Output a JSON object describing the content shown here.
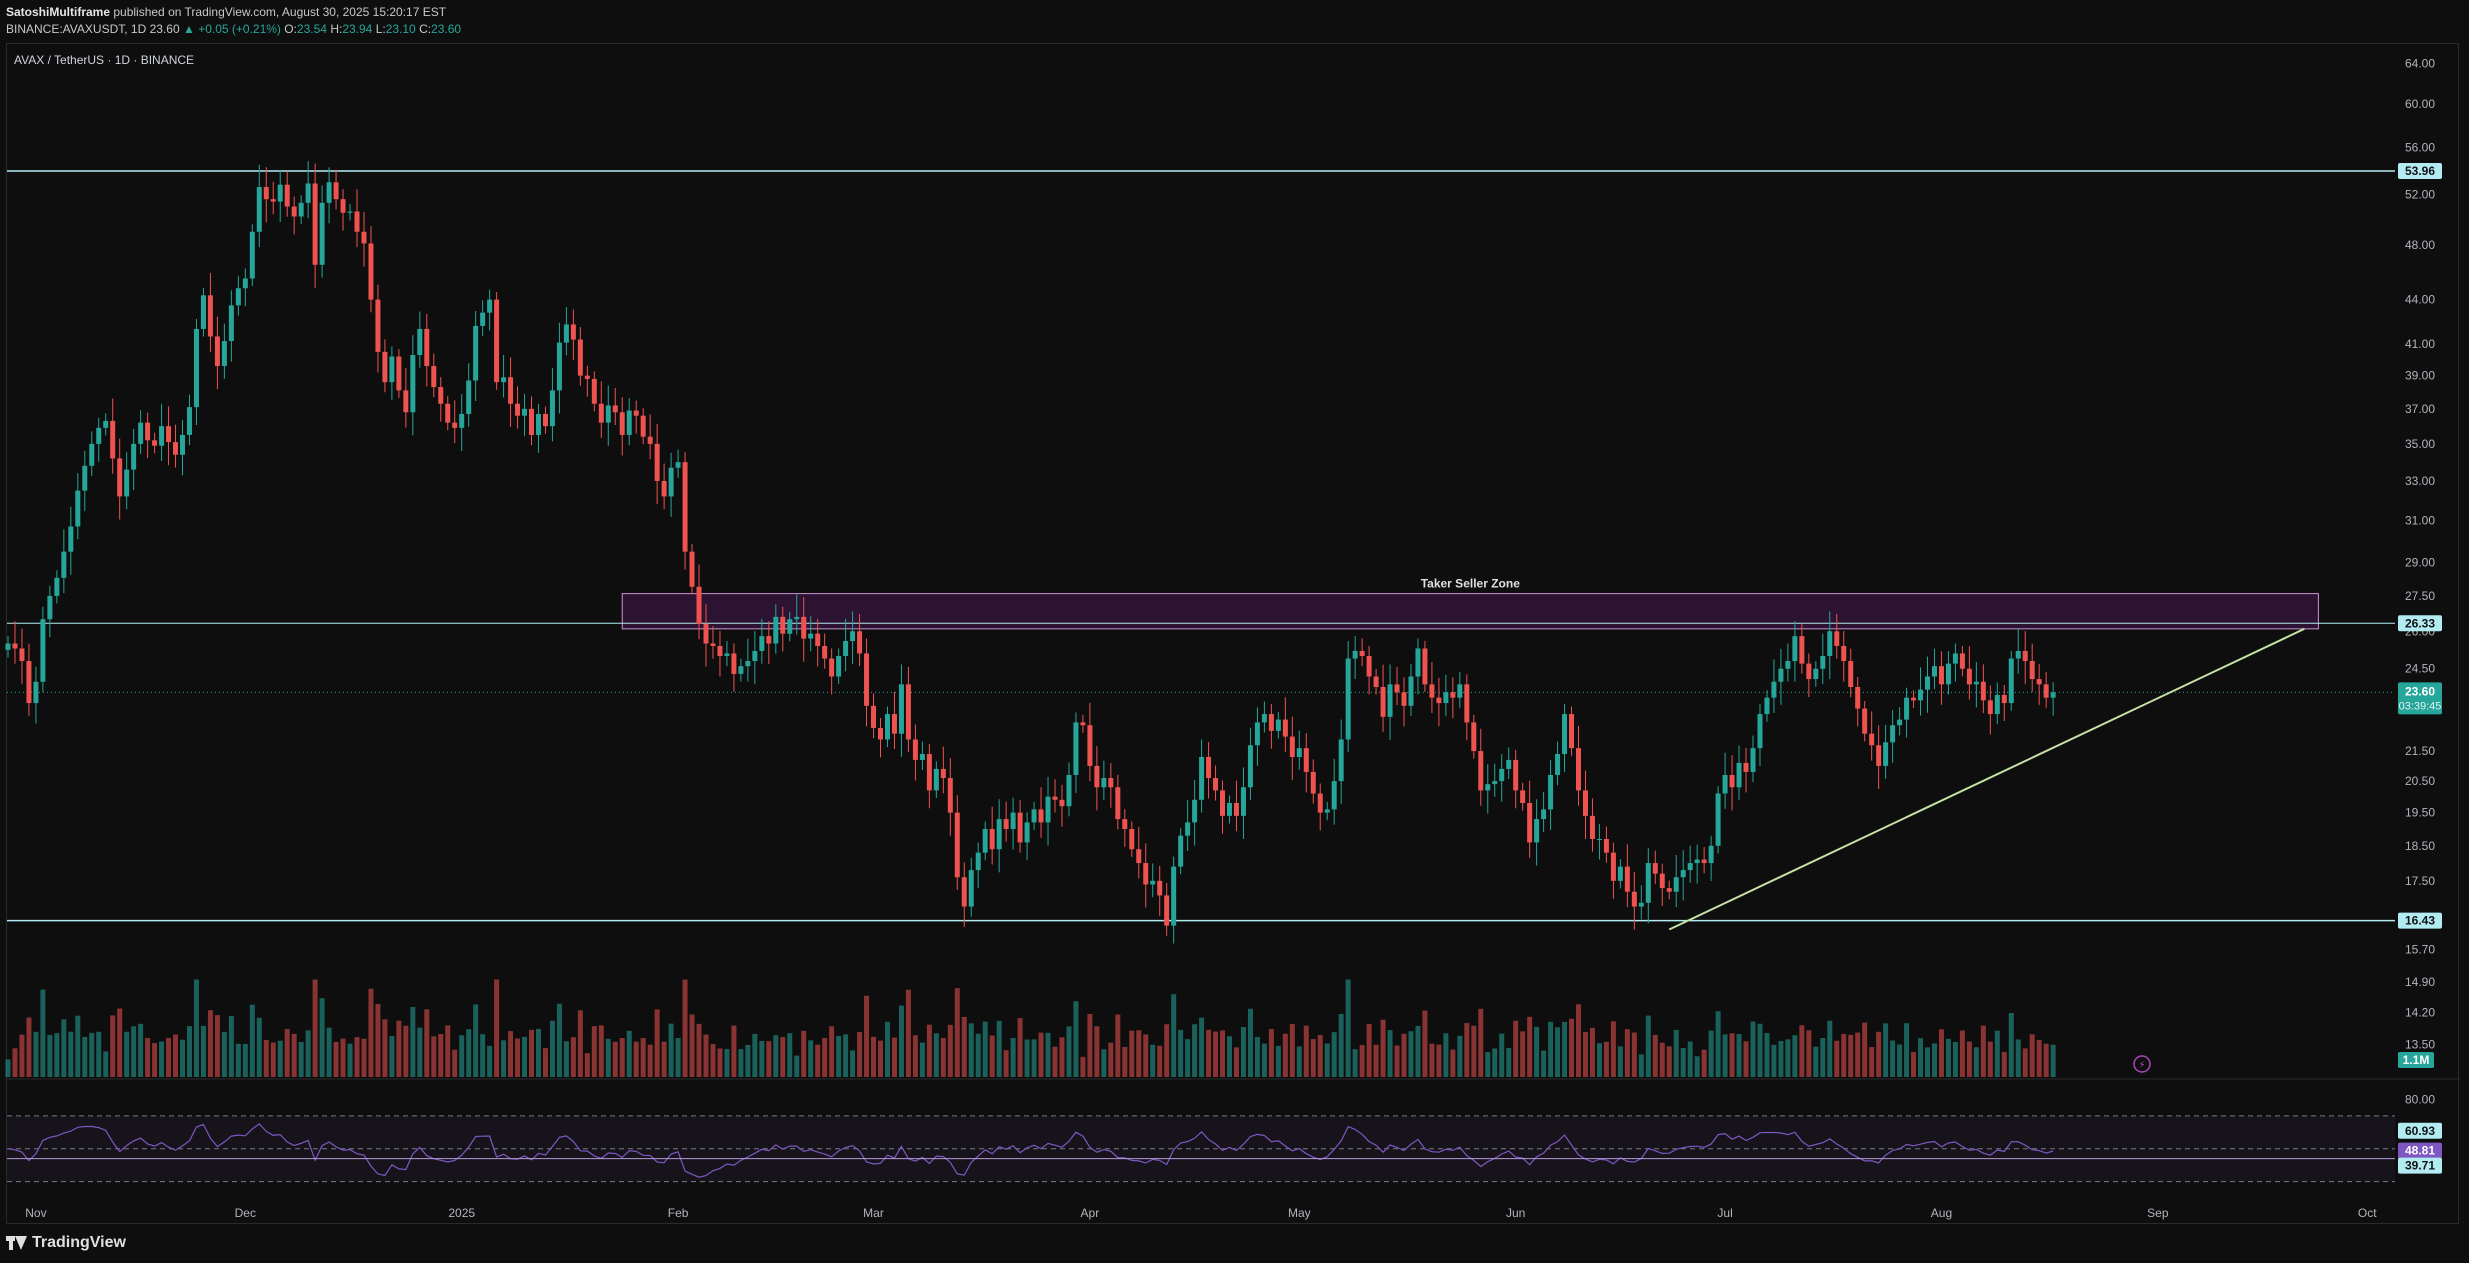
{
  "header": {
    "author": "SatoshiMultiframe",
    "published": "published on TradingView.com, August 30, 2025 15:20:17 EST",
    "symbol_line": "BINANCE:AVAXUSDT, 1D",
    "last": "23.60",
    "change": "▲ +0.05 (+0.21%)",
    "o_label": "O:",
    "o": "23.54",
    "h_label": "H:",
    "h": "23.94",
    "l_label": "L:",
    "l": "23.10",
    "c_label": "C:",
    "c": "23.60"
  },
  "footer": {
    "brand": "TradingView"
  },
  "chart_data": {
    "type": "candlestick",
    "title": "AVAX / TetherUS · 1D · BINANCE",
    "ylim": [
      12.8,
      66
    ],
    "y_scale": "log",
    "y_ticks": [
      "64.00",
      "60.00",
      "56.00",
      "52.00",
      "48.00",
      "44.00",
      "41.00",
      "39.00",
      "37.00",
      "35.00",
      "33.00",
      "31.00",
      "29.00",
      "27.50",
      "26.00",
      "24.50",
      "23.00",
      "21.50",
      "20.50",
      "19.50",
      "18.50",
      "17.50",
      "16.50",
      "15.70",
      "14.90",
      "14.20",
      "13.50"
    ],
    "x_ticks": [
      "Nov",
      "Dec",
      "2025",
      "Feb",
      "Mar",
      "Apr",
      "May",
      "Jun",
      "Jul",
      "Aug",
      "Sep",
      "Oct"
    ],
    "horizontal_levels": [
      53.96,
      26.33,
      16.43
    ],
    "level_labels": [
      "53.96",
      "26.33",
      "16.43"
    ],
    "zone": {
      "label": "Taker Seller Zone",
      "top": 27.6,
      "bottom": 26.1,
      "start": "2025-01-24",
      "end": "2025-09-24"
    },
    "trendline": {
      "start_date": "2025-06-23",
      "start_value": 16.2,
      "end_date": "2025-09-22",
      "end_value": 26.1
    },
    "current_price": "23.60",
    "countdown": "03:39:45",
    "volume_label": "1.1M",
    "rsi_axis": [
      "80.00",
      "60.93",
      "48.81",
      "39.71"
    ],
    "rsi_levels": [
      60.93,
      48.81,
      39.71
    ],
    "colors": {
      "up": "#26a69a",
      "down": "#ef5350",
      "level": "#b2ebf2",
      "zone": "#9c27b0",
      "trend": "#c5e1a5",
      "rsi": "#7e57c2"
    },
    "closes": [
      25.5,
      25.3,
      24.8,
      23.2,
      24.0,
      26.5,
      27.5,
      28.3,
      29.5,
      30.7,
      32.5,
      33.8,
      35.0,
      35.9,
      36.3,
      34.2,
      32.2,
      33.6,
      35.0,
      36.2,
      35.2,
      34.9,
      36.0,
      35.1,
      34.4,
      35.5,
      37.1,
      42.0,
      44.3,
      41.5,
      39.6,
      41.2,
      43.6,
      44.8,
      45.5,
      49.0,
      52.6,
      51.6,
      51.4,
      52.8,
      51.0,
      50.2,
      51.3,
      52.9,
      46.5,
      51.3,
      53.0,
      51.6,
      50.5,
      50.6,
      49.0,
      48.1,
      44.0,
      40.5,
      38.6,
      40.2,
      38.1,
      36.8,
      40.3,
      42.0,
      39.6,
      38.3,
      37.3,
      36.2,
      35.9,
      36.7,
      38.7,
      42.2,
      43.1,
      44.0,
      38.6,
      38.9,
      37.3,
      36.6,
      37.0,
      35.5,
      36.7,
      36.0,
      38.1,
      41.1,
      42.3,
      41.3,
      39.0,
      38.8,
      37.3,
      36.2,
      37.2,
      36.8,
      35.5,
      36.9,
      36.6,
      35.4,
      35.0,
      33.0,
      32.2,
      33.7,
      34.0,
      29.5,
      27.9,
      26.3,
      25.5,
      25.4,
      25.0,
      25.1,
      24.3,
      24.6,
      24.8,
      25.2,
      25.8,
      25.5,
      26.6,
      25.9,
      26.5,
      26.6,
      25.7,
      25.9,
      25.4,
      24.9,
      24.2,
      25.0,
      25.6,
      26.0,
      25.1,
      23.1,
      22.3,
      21.9,
      22.8,
      22.1,
      23.9,
      21.9,
      21.2,
      21.4,
      20.2,
      20.9,
      20.6,
      19.5,
      17.6,
      16.8,
      17.8,
      18.3,
      19.0,
      18.4,
      19.3,
      19.0,
      19.5,
      18.6,
      19.2,
      19.6,
      19.2,
      20.0,
      19.9,
      19.7,
      20.7,
      22.5,
      22.4,
      21.0,
      20.3,
      20.6,
      20.3,
      19.3,
      19.0,
      18.4,
      18.0,
      17.4,
      17.5,
      17.1,
      16.3,
      17.9,
      18.8,
      19.2,
      19.9,
      21.3,
      20.6,
      20.2,
      19.4,
      19.8,
      19.4,
      20.3,
      21.7,
      22.5,
      22.8,
      22.2,
      22.6,
      22.0,
      21.3,
      21.6,
      20.8,
      20.1,
      19.5,
      19.6,
      20.5,
      21.9,
      24.9,
      25.2,
      25.0,
      24.2,
      23.8,
      22.7,
      23.9,
      23.6,
      23.1,
      24.2,
      25.3,
      23.9,
      23.4,
      23.2,
      23.6,
      23.4,
      23.9,
      22.5,
      21.5,
      20.2,
      20.4,
      20.5,
      20.9,
      21.2,
      20.2,
      19.8,
      18.6,
      19.3,
      19.6,
      20.7,
      21.4,
      22.8,
      21.6,
      20.2,
      19.4,
      18.7,
      18.7,
      18.3,
      17.5,
      17.9,
      17.2,
      16.8,
      16.9,
      18.0,
      17.7,
      17.3,
      17.2,
      17.6,
      17.8,
      18.0,
      18.1,
      18.0,
      18.5,
      20.1,
      20.7,
      20.3,
      21.1,
      20.8,
      21.6,
      22.8,
      23.4,
      24.0,
      24.5,
      24.8,
      25.8,
      24.7,
      24.1,
      24.5,
      25.0,
      26.0,
      25.4,
      24.8,
      23.8,
      23.0,
      22.1,
      21.7,
      21.0,
      21.8,
      22.4,
      22.6,
      23.4,
      23.3,
      23.7,
      24.2,
      24.6,
      23.9,
      24.7,
      25.1,
      24.5,
      23.9,
      24.0,
      23.3,
      22.8,
      23.5,
      23.2,
      24.9,
      25.2,
      24.8,
      24.1,
      23.9,
      23.4,
      23.6
    ],
    "x": [
      "start 2024-10-28, daily through 2025-08-30"
    ]
  }
}
